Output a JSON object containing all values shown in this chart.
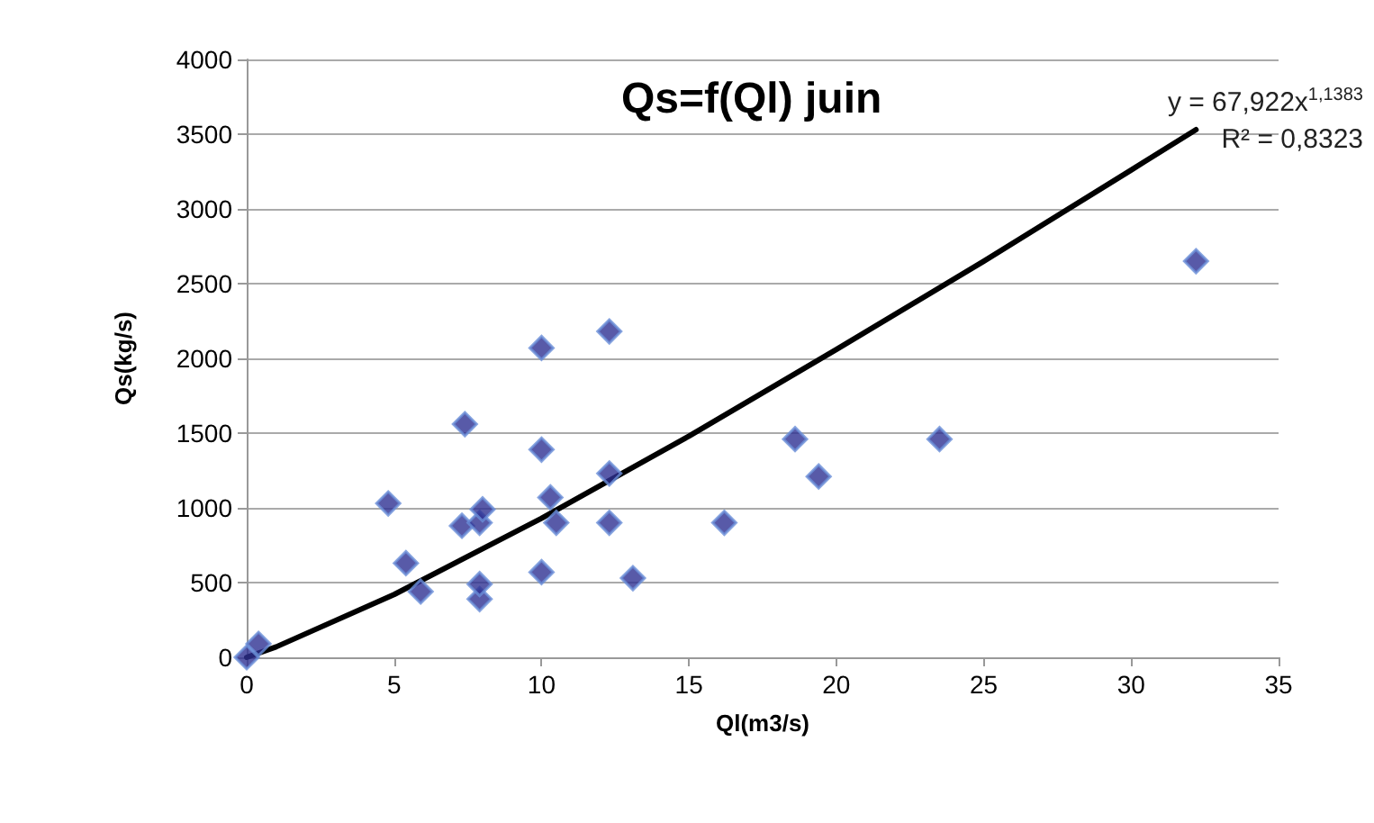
{
  "chart_data": {
    "type": "scatter",
    "title": "Qs=f(Ql) juin",
    "xlabel": "Ql(m3/s)",
    "ylabel": "Qs(kg/s)",
    "annotations": [
      "y = 67,922x$^{1,1383}$",
      "R² = 0,8323"
    ],
    "xlim": [
      0,
      35
    ],
    "xticks": [
      0,
      5,
      10,
      15,
      20,
      25,
      30,
      35
    ],
    "ylim": [
      0,
      4000
    ],
    "yticks": [
      0,
      500,
      1000,
      1500,
      2000,
      2500,
      3000,
      3500,
      4000
    ],
    "grid": "y",
    "marker": "diamond",
    "series": [
      {
        "color": "#2e3192",
        "x": [
          0,
          0.4,
          4.8,
          5.4,
          5.9,
          7.3,
          7.4,
          7.9,
          7.9,
          7.9,
          8.0,
          10.0,
          10.0,
          10.0,
          10.3,
          10.5,
          12.3,
          12.3,
          12.3,
          13.1,
          16.2,
          18.6,
          19.4,
          23.5,
          32.2
        ],
        "values": [
          0,
          90,
          1030,
          630,
          440,
          880,
          1560,
          390,
          490,
          900,
          990,
          2070,
          1390,
          570,
          1070,
          900,
          2180,
          1230,
          900,
          530,
          900,
          1460,
          1210,
          1460,
          2650
        ]
      },
      {
        "type": "line",
        "color": "#000000",
        "marker": "none",
        "x": [
          0,
          1,
          5,
          10,
          15,
          20,
          25,
          30,
          32.2
        ],
        "values": [
          0,
          70,
          420,
          930,
          1480,
          2060,
          2650,
          3260,
          3530
        ]
      }
    ]
  }
}
